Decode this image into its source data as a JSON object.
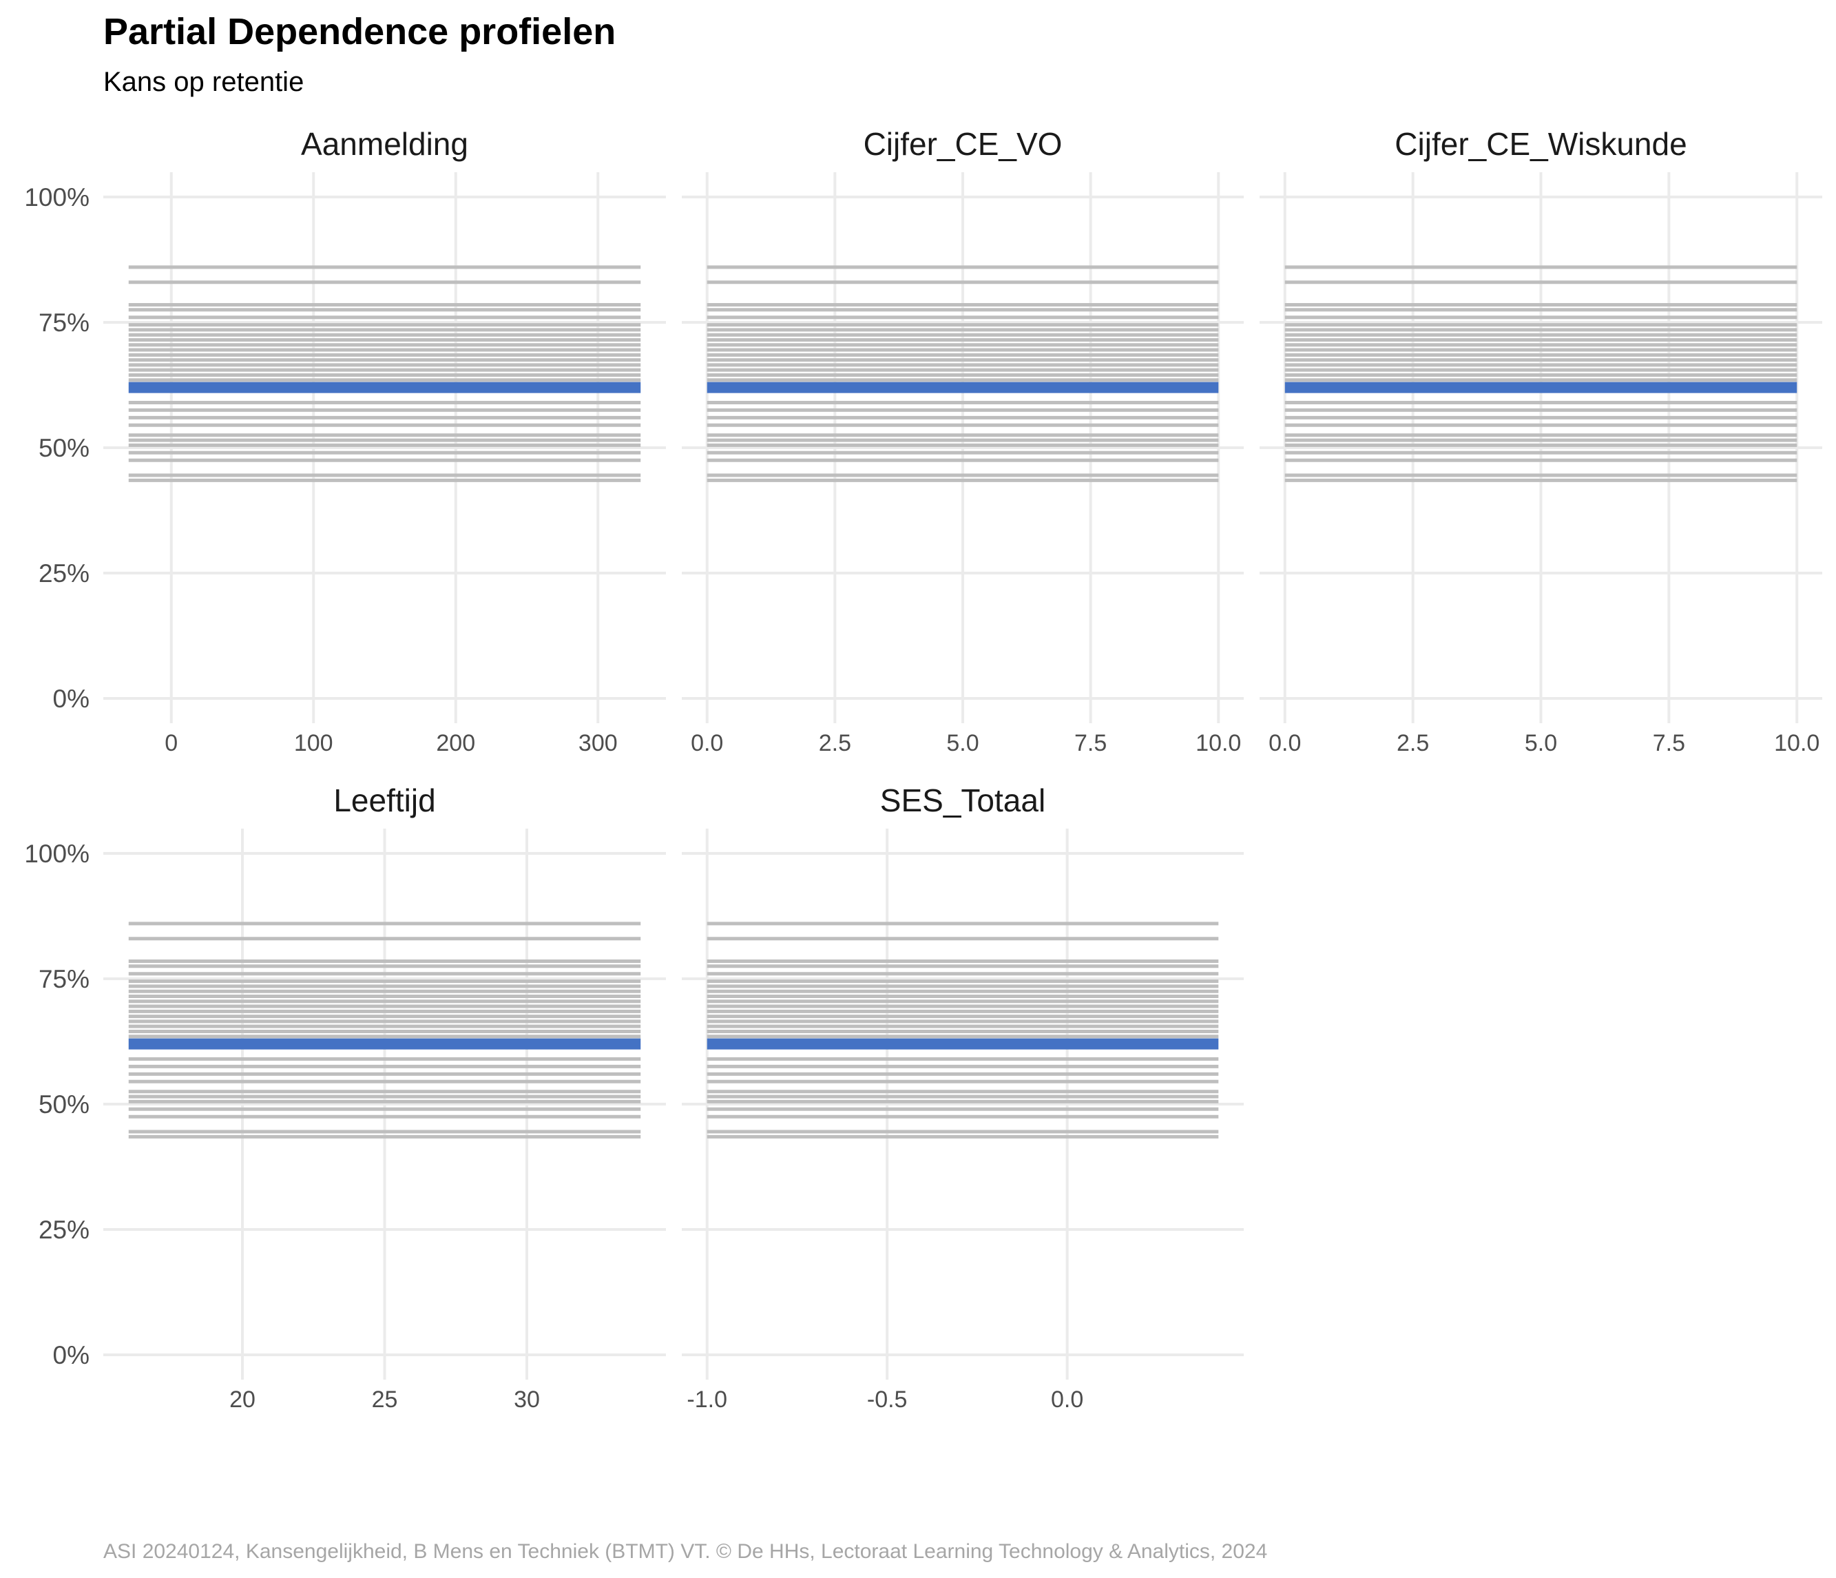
{
  "title": "Partial Dependence profielen",
  "subtitle": "Kans op retentie",
  "caption": "ASI 20240124, Kansengelijkheid, B Mens en Techniek (BTMT) VT. © De HHs, Lectoraat Learning Technology & Analytics, 2024",
  "colors": {
    "profile_line": "#bebebe",
    "mean_line": "#4472c4",
    "grid": "#ebebeb"
  },
  "chart_data": {
    "type": "line",
    "y_axis": {
      "ylim": [
        0,
        1.0
      ],
      "ticks": [
        0,
        0.25,
        0.5,
        0.75,
        1.0
      ],
      "tick_labels": [
        "0%",
        "25%",
        "50%",
        "75%",
        "100%"
      ]
    },
    "grid": true,
    "legend": "none",
    "profile_levels": [
      0.435,
      0.445,
      0.475,
      0.49,
      0.505,
      0.515,
      0.525,
      0.545,
      0.56,
      0.575,
      0.59,
      0.635,
      0.645,
      0.655,
      0.665,
      0.675,
      0.685,
      0.695,
      0.705,
      0.715,
      0.725,
      0.735,
      0.745,
      0.76,
      0.775,
      0.785,
      0.83,
      0.86
    ],
    "mean_level": 0.62,
    "panels": [
      {
        "feature": "Aanmelding",
        "xlim": [
          -30,
          330
        ],
        "x_ticks": [
          0,
          100,
          200,
          300
        ],
        "x_tick_labels": [
          "0",
          "100",
          "200",
          "300"
        ]
      },
      {
        "feature": "Cijfer_CE_VO",
        "xlim": [
          0,
          10
        ],
        "x_ticks": [
          0,
          2.5,
          5,
          7.5,
          10
        ],
        "x_tick_labels": [
          "0.0",
          "2.5",
          "5.0",
          "7.5",
          "10.0"
        ]
      },
      {
        "feature": "Cijfer_CE_Wiskunde",
        "xlim": [
          0,
          10
        ],
        "x_ticks": [
          0,
          2.5,
          5,
          7.5,
          10
        ],
        "x_tick_labels": [
          "0.0",
          "2.5",
          "5.0",
          "7.5",
          "10.0"
        ]
      },
      {
        "feature": "Leeftijd",
        "xlim": [
          16,
          34
        ],
        "x_ticks": [
          20,
          25,
          30
        ],
        "x_tick_labels": [
          "20",
          "25",
          "30"
        ]
      },
      {
        "feature": "SES_Totaal",
        "xlim": [
          -1.0,
          0.42
        ],
        "x_ticks": [
          -1.0,
          -0.5,
          0.0
        ],
        "x_tick_labels": [
          "-1.0",
          "-0.5",
          "0.0"
        ]
      }
    ]
  }
}
